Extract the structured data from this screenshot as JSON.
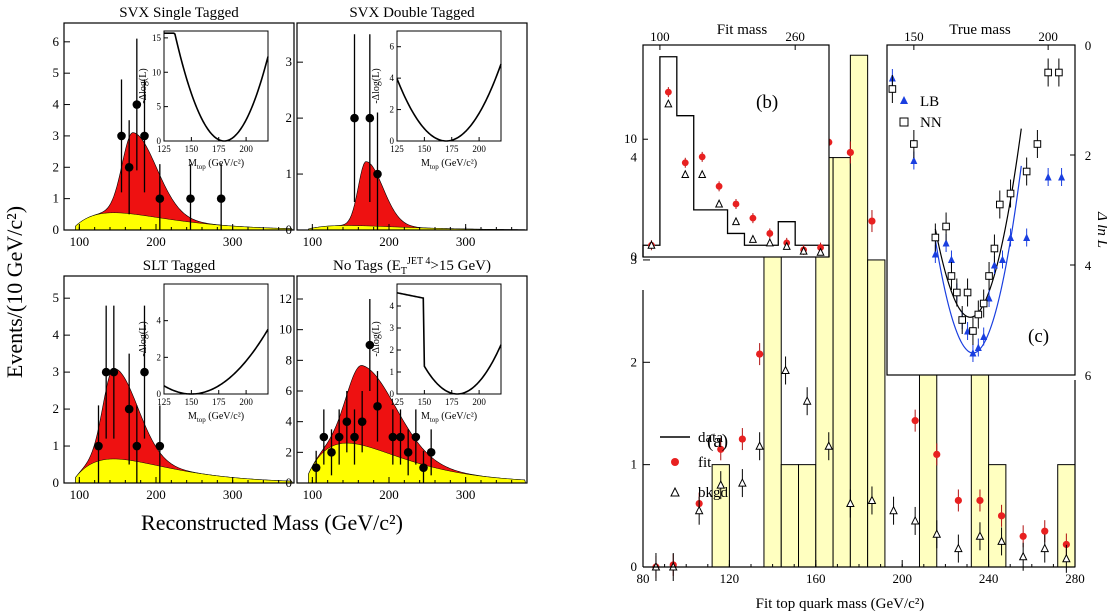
{
  "left_figure": {
    "ylabel": "Events/(10 GeV/c²)",
    "xlabel": "Reconstructed Mass (GeV/c²)",
    "inset_ylabel": "-Δlog(L)",
    "inset_xlabel": "M",
    "inset_xlabel_sub": "top",
    "inset_xlabel_unit": " (GeV/c²)"
  },
  "right_figure": {
    "xlabel": "Fit top quark mass (GeV/c²)",
    "b_title": "Fit mass",
    "b_label": "(b)",
    "c_title": "True mass",
    "c_label": "(c)",
    "c_ylabel": "Δ ln L",
    "a_label": "(a)",
    "legend_data": "data",
    "legend_fit": "fit",
    "legend_bkgd": "bkgd",
    "legend_lb": "LB",
    "legend_nn": "NN"
  },
  "colors": {
    "signal": "#ee1111",
    "background": "#ffff00",
    "hist_fill": "#ffffc0",
    "lb": "#1a3fe0",
    "fit_marker": "#e82020"
  },
  "chart_data": [
    {
      "type": "scatter",
      "title": "SVX Single Tagged",
      "xlim": [
        80,
        380
      ],
      "ylim": [
        0,
        6.6
      ],
      "xticks": [
        100,
        200,
        300
      ],
      "yticks": [
        0,
        1,
        2,
        3,
        4,
        5,
        6
      ],
      "x": [
        155,
        165,
        175,
        185,
        205,
        245,
        285
      ],
      "y": [
        3,
        2,
        4,
        3,
        1,
        1,
        1
      ],
      "yerr": [
        1.8,
        1.5,
        2.1,
        1.8,
        1.1,
        1.1,
        1.1
      ],
      "signal_peak": 170,
      "signal_height": 2.6,
      "signal_width": 14,
      "bkg_height": 0.55,
      "inset": {
        "xlim": [
          125,
          220
        ],
        "xticks": [
          125,
          150,
          175,
          200
        ],
        "ylim": [
          0,
          16
        ],
        "yticks": [
          0,
          5,
          10,
          15
        ],
        "min_x": 180,
        "curvature": 0.0048
      }
    },
    {
      "type": "scatter",
      "title": "SVX Double Tagged",
      "xlim": [
        80,
        380
      ],
      "ylim": [
        0,
        3.7
      ],
      "xticks": [
        100,
        200,
        300
      ],
      "yticks": [
        0,
        1,
        2,
        3
      ],
      "x": [
        155,
        175,
        185
      ],
      "y": [
        2,
        2,
        1
      ],
      "yerr": [
        1.5,
        1.5,
        1.1
      ],
      "signal_peak": 170,
      "signal_height": 1.15,
      "signal_width": 10,
      "bkg_height": 0.08,
      "inset": {
        "xlim": [
          125,
          220
        ],
        "xticks": [
          125,
          150,
          175,
          200
        ],
        "ylim": [
          0,
          7
        ],
        "yticks": [
          0,
          2,
          4,
          6
        ],
        "min_x": 170,
        "curvature": 0.0028
      }
    },
    {
      "type": "scatter",
      "title": "SLT Tagged",
      "xlim": [
        80,
        380
      ],
      "ylim": [
        0,
        5.6
      ],
      "xticks": [
        100,
        200,
        300
      ],
      "yticks": [
        0,
        1,
        2,
        3,
        4,
        5
      ],
      "x": [
        125,
        135,
        145,
        165,
        175,
        185,
        205
      ],
      "y": [
        1,
        3,
        3,
        2,
        1,
        3,
        1
      ],
      "yerr": [
        1.1,
        1.8,
        1.8,
        1.5,
        1.1,
        1.8,
        1.1
      ],
      "signal_peak": 145,
      "signal_height": 2.45,
      "signal_width": 14,
      "bkg_height": 0.65,
      "inset": {
        "xlim": [
          125,
          220
        ],
        "xticks": [
          125,
          150,
          175,
          200
        ],
        "ylim": [
          0,
          6
        ],
        "yticks": [
          0,
          2,
          4
        ],
        "min_x": 150,
        "curvature": 0.0012
      }
    },
    {
      "type": "scatter",
      "title": "No Tags (E",
      "title_sub": "T",
      "title_sup": "JET 4",
      "title_tail": ">15 GeV)",
      "xlim": [
        80,
        380
      ],
      "ylim": [
        0,
        13.5
      ],
      "xticks": [
        100,
        200,
        300
      ],
      "yticks": [
        0,
        2,
        4,
        6,
        8,
        10,
        12
      ],
      "x": [
        105,
        115,
        125,
        135,
        145,
        155,
        165,
        175,
        185,
        205,
        215,
        225,
        235,
        245,
        255
      ],
      "y": [
        1,
        3,
        2,
        3,
        4,
        3,
        4,
        9,
        5,
        3,
        3,
        2,
        3,
        1,
        2
      ],
      "yerr": [
        1.1,
        1.8,
        1.5,
        1.8,
        2,
        1.8,
        2,
        3,
        2.3,
        1.8,
        1.8,
        1.5,
        1.8,
        1.1,
        1.5
      ],
      "signal_peak": 165,
      "signal_height": 5.2,
      "signal_width": 20,
      "bkg_height": 2.6,
      "inset": {
        "xlim": [
          125,
          220
        ],
        "xticks": [
          125,
          150,
          175,
          200
        ],
        "ylim": [
          0,
          5
        ],
        "yticks": [
          0,
          1,
          2,
          3,
          4
        ],
        "min_x": 180,
        "curvature": 0.0028
      }
    },
    {
      "type": "bar",
      "title": "(a)",
      "xlabel": "Fit top quark mass (GeV/c²)",
      "xlim": [
        80,
        280
      ],
      "ylim": [
        0,
        5.1
      ],
      "xticks": [
        80,
        120,
        160,
        200,
        240,
        280
      ],
      "yticks": [
        0,
        1,
        2,
        3,
        4
      ],
      "bins_x0": 80,
      "bin_width": 8,
      "hist_values": [
        0,
        0,
        0,
        0,
        1,
        0,
        0,
        5,
        1,
        1,
        4,
        4,
        5,
        3,
        0,
        0,
        2,
        0,
        0,
        3,
        1,
        0,
        0,
        0,
        1,
        0
      ],
      "fit_x": [
        86,
        94,
        106,
        116,
        126,
        134,
        146,
        156,
        166,
        176,
        186,
        196,
        206,
        216,
        226,
        236,
        246,
        256,
        266,
        276
      ],
      "fit_y": [
        0,
        0.02,
        0.62,
        1.15,
        1.25,
        2.08,
        3.5,
        3.82,
        4.15,
        4.05,
        3.38,
        1.98,
        1.43,
        1.1,
        0.65,
        0.65,
        0.5,
        0.3,
        0.35,
        0.22
      ],
      "bkgd_x": [
        86,
        94,
        106,
        116,
        126,
        134,
        146,
        156,
        166,
        176,
        186,
        196,
        206,
        216,
        226,
        236,
        246,
        256,
        266,
        276
      ],
      "bkgd_y": [
        0,
        0,
        0.55,
        0.8,
        0.82,
        1.18,
        1.92,
        1.62,
        1.18,
        0.62,
        0.65,
        0.55,
        0.45,
        0.32,
        0.18,
        0.3,
        0.25,
        0.1,
        0.18,
        0.08
      ]
    },
    {
      "type": "bar",
      "title": "Fit mass",
      "xlim": [
        80,
        300
      ],
      "ylim": [
        0,
        18
      ],
      "xticks": [
        100,
        260
      ],
      "yticks": [
        0,
        10
      ],
      "bin_edges": [
        80,
        100,
        120,
        140,
        160,
        180,
        200,
        220,
        240,
        260,
        280,
        300
      ],
      "hist_values": [
        1,
        17,
        12,
        4,
        4,
        2,
        1,
        1,
        3,
        1,
        1
      ],
      "fit_x": [
        90,
        110,
        130,
        150,
        170,
        190,
        210,
        230,
        250,
        270,
        290
      ],
      "fit_y": [
        1,
        14,
        8,
        8.5,
        6,
        4.5,
        3.3,
        2,
        1.2,
        0.6,
        0.8
      ],
      "bkgd_x": [
        90,
        110,
        130,
        150,
        170,
        190,
        210,
        230,
        250,
        270,
        290
      ],
      "bkgd_y": [
        1,
        13,
        7,
        7,
        4.5,
        3,
        1.5,
        1.2,
        0.9,
        0.5,
        0.4
      ]
    },
    {
      "type": "scatter",
      "title": "True mass",
      "xlim": [
        140,
        210
      ],
      "ylim": [
        0,
        6
      ],
      "xticks": [
        150,
        200
      ],
      "yticks": [
        0,
        2,
        4,
        6
      ],
      "series": [
        {
          "name": "LB",
          "x": [
            142,
            150,
            158,
            162,
            164,
            166,
            168,
            170,
            172,
            174,
            176,
            178,
            180,
            183,
            186,
            192,
            200,
            205
          ],
          "y": [
            0.6,
            2.1,
            3.8,
            3.6,
            3.9,
            4.5,
            5.0,
            5.2,
            5.6,
            5.5,
            5.3,
            4.6,
            4.0,
            3.9,
            3.5,
            3.5,
            2.4,
            2.4
          ]
        },
        {
          "name": "NN",
          "x": [
            142,
            150,
            158,
            162,
            164,
            166,
            168,
            170,
            172,
            174,
            176,
            178,
            180,
            182,
            186,
            192,
            196,
            200,
            204
          ],
          "y": [
            0.8,
            1.8,
            3.5,
            3.3,
            4.2,
            4.5,
            5.0,
            4.5,
            5.2,
            4.9,
            4.7,
            4.2,
            3.7,
            2.9,
            2.7,
            2.3,
            1.8,
            0.5,
            0.5
          ]
        }
      ]
    }
  ]
}
